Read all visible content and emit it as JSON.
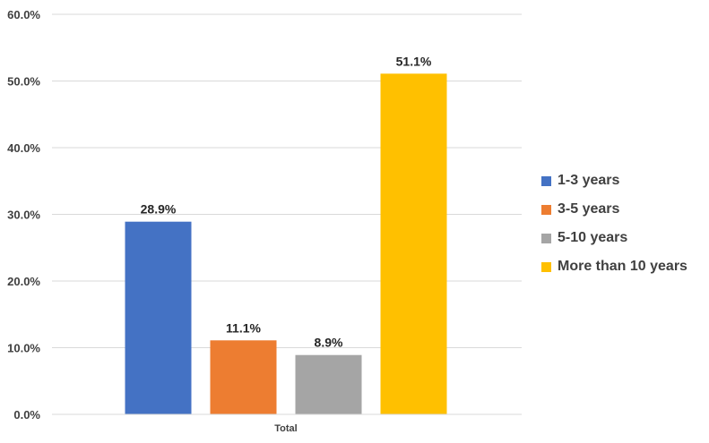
{
  "chart_data": {
    "type": "bar",
    "categories": [
      "Total"
    ],
    "series": [
      {
        "name": "1-3 years",
        "values": [
          28.9
        ],
        "color": "#4472C4"
      },
      {
        "name": "3-5 years",
        "values": [
          11.1
        ],
        "color": "#ED7D31"
      },
      {
        "name": "5-10 years",
        "values": [
          8.9
        ],
        "color": "#A5A5A5"
      },
      {
        "name": "More than 10 years",
        "values": [
          51.1
        ],
        "color": "#FFC000"
      }
    ],
    "data_labels": [
      "28.9%",
      "11.1%",
      "8.9%",
      "51.1%"
    ],
    "y_ticks": [
      "0.0%",
      "10.0%",
      "20.0%",
      "30.0%",
      "40.0%",
      "50.0%",
      "60.0%"
    ],
    "ylim": [
      0,
      60
    ],
    "grid": true,
    "legend_position": "right",
    "title": "",
    "xlabel": "",
    "ylabel": ""
  }
}
